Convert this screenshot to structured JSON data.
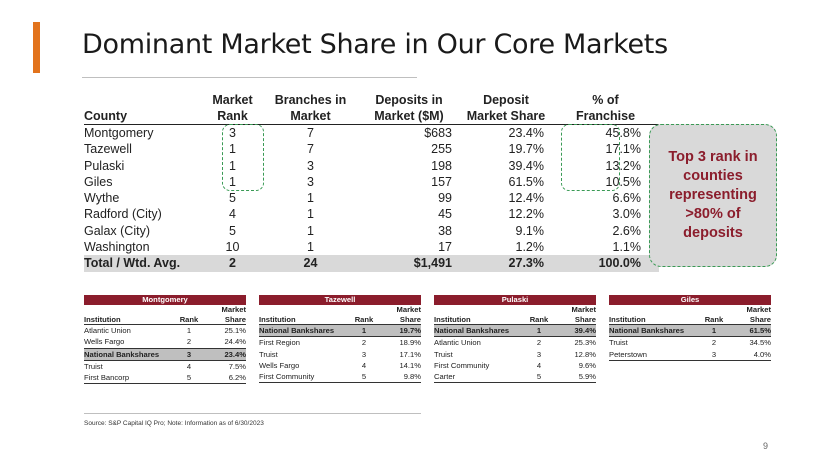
{
  "title": "Dominant Market Share in Our Core Markets",
  "main_table": {
    "headers": [
      [
        "County"
      ],
      [
        "Market",
        "Rank"
      ],
      [
        "Branches in",
        "Market"
      ],
      [
        "Deposits in",
        "Market ($M)"
      ],
      [
        "Deposit",
        "Market Share"
      ],
      [
        "% of",
        "Franchise"
      ]
    ],
    "rows": [
      [
        "Montgomery",
        "3",
        "7",
        "$683",
        "23.4%",
        "45.8%"
      ],
      [
        "Tazewell",
        "1",
        "7",
        "255",
        "19.7%",
        "17.1%"
      ],
      [
        "Pulaski",
        "1",
        "3",
        "198",
        "39.4%",
        "13.2%"
      ],
      [
        "Giles",
        "1",
        "3",
        "157",
        "61.5%",
        "10.5%"
      ],
      [
        "Wythe",
        "5",
        "1",
        "99",
        "12.4%",
        "6.6%"
      ],
      [
        "Radford (City)",
        "4",
        "1",
        "45",
        "12.2%",
        "3.0%"
      ],
      [
        "Galax (City)",
        "5",
        "1",
        "38",
        "9.1%",
        "2.6%"
      ],
      [
        "Washington",
        "10",
        "1",
        "17",
        "1.2%",
        "1.1%"
      ]
    ],
    "total": [
      "Total / Wtd. Avg.",
      "2",
      "24",
      "$1,491",
      "27.3%",
      "100.0%"
    ]
  },
  "callout": {
    "lines": [
      "Top 3 rank in",
      "counties",
      "representing",
      ">80% of",
      "deposits"
    ]
  },
  "mini_tables": [
    {
      "title": "Montgomery",
      "header_top": "Market",
      "headers": [
        "Institution",
        "Rank",
        "Share"
      ],
      "rows": [
        [
          "Atlantic Union",
          "1",
          "25.1%"
        ],
        [
          "Wells Fargo",
          "2",
          "24.4%"
        ],
        [
          "National Bankshares",
          "3",
          "23.4%"
        ],
        [
          "Truist",
          "4",
          "7.5%"
        ],
        [
          "First Bancorp",
          "5",
          "6.2%"
        ]
      ],
      "highlight_row": 2
    },
    {
      "title": "Tazewell",
      "header_top": "Market",
      "headers": [
        "Institution",
        "Rank",
        "Share"
      ],
      "rows": [
        [
          "National Bankshares",
          "1",
          "19.7%"
        ],
        [
          "First Region",
          "2",
          "18.9%"
        ],
        [
          "Truist",
          "3",
          "17.1%"
        ],
        [
          "Wells Fargo",
          "4",
          "14.1%"
        ],
        [
          "First Community",
          "5",
          "9.8%"
        ]
      ],
      "highlight_row": 0
    },
    {
      "title": "Pulaski",
      "header_top": "Market",
      "headers": [
        "Institution",
        "Rank",
        "Share"
      ],
      "rows": [
        [
          "National Bankshares",
          "1",
          "39.4%"
        ],
        [
          "Atlantic Union",
          "2",
          "25.3%"
        ],
        [
          "Truist",
          "3",
          "12.8%"
        ],
        [
          "First Community",
          "4",
          "9.6%"
        ],
        [
          "Carter",
          "5",
          "5.9%"
        ]
      ],
      "highlight_row": 0
    },
    {
      "title": "Giles",
      "header_top": "Market",
      "headers": [
        "Institution",
        "Rank",
        "Share"
      ],
      "rows": [
        [
          "National Bankshares",
          "1",
          "61.5%"
        ],
        [
          "Truist",
          "2",
          "34.5%"
        ],
        [
          "Peterstown",
          "3",
          "4.0%"
        ]
      ],
      "highlight_row": 0
    }
  ],
  "source": "Source: S&P Capital IQ Pro; Note: Information as of 6/30/2023",
  "page_number": "9",
  "colors": {
    "accent": "#e2731c",
    "maroon": "#8b1d2c",
    "dash_green": "#3a9a55",
    "gray_fill": "#d9d9d9"
  }
}
